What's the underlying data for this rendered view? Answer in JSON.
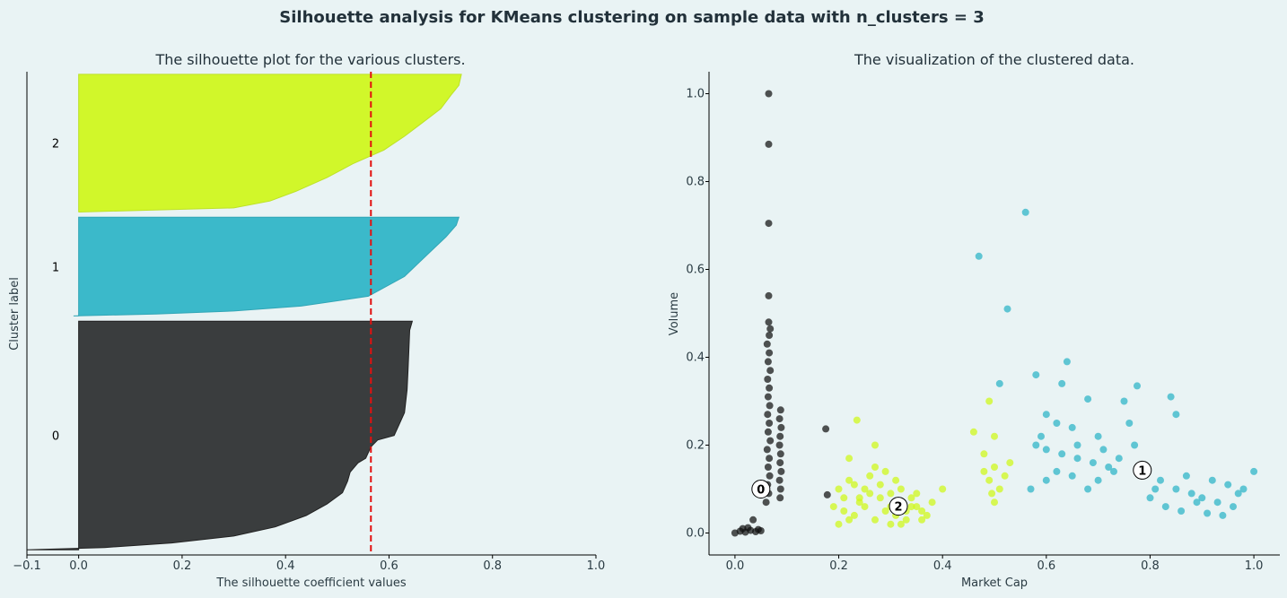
{
  "suptitle": "Silhouette analysis for KMeans clustering on sample data with n_clusters = 3",
  "colors": {
    "background": "#e9f3f4",
    "cluster_0": "#3a3d3e",
    "cluster_1": "#29b3c6",
    "cluster_2": "#cff815",
    "average_line": "#e3100f"
  },
  "chart_data": [
    {
      "type": "area",
      "title": "The silhouette plot for the various clusters.",
      "xlabel": "The silhouette coefficient values",
      "ylabel": "Cluster label",
      "xlim": [
        -0.1,
        1.0
      ],
      "xticks": [
        "−0.1",
        "0.0",
        "0.2",
        "0.4",
        "0.6",
        "0.8",
        "1.0"
      ],
      "xtick_values": [
        -0.1,
        0.0,
        0.2,
        0.4,
        0.6,
        0.8,
        1.0
      ],
      "ylim": [
        0,
        930
      ],
      "average_silhouette": 0.565,
      "grid": false,
      "clusters": [
        {
          "label": "0",
          "range": [
            10,
            450
          ],
          "profile": [
            [
              0.0,
              0.645
            ],
            [
              0.04,
              0.64
            ],
            [
              0.2,
              0.637
            ],
            [
              0.3,
              0.635
            ],
            [
              0.4,
              0.63
            ],
            [
              0.45,
              0.62
            ],
            [
              0.5,
              0.61
            ],
            [
              0.52,
              0.578
            ],
            [
              0.55,
              0.565
            ],
            [
              0.6,
              0.555
            ],
            [
              0.62,
              0.54
            ],
            [
              0.66,
              0.525
            ],
            [
              0.7,
              0.52
            ],
            [
              0.75,
              0.51
            ],
            [
              0.8,
              0.48
            ],
            [
              0.85,
              0.44
            ],
            [
              0.9,
              0.38
            ],
            [
              0.94,
              0.3
            ],
            [
              0.97,
              0.18
            ],
            [
              0.99,
              0.05
            ],
            [
              1.0,
              -0.1
            ]
          ]
        },
        {
          "label": "1",
          "range": [
            460,
            650
          ],
          "profile": [
            [
              0.0,
              0.735
            ],
            [
              0.08,
              0.73
            ],
            [
              0.2,
              0.71
            ],
            [
              0.3,
              0.69
            ],
            [
              0.45,
              0.66
            ],
            [
              0.6,
              0.63
            ],
            [
              0.8,
              0.56
            ],
            [
              0.9,
              0.43
            ],
            [
              0.95,
              0.3
            ],
            [
              0.98,
              0.15
            ],
            [
              1.0,
              -0.01
            ]
          ]
        },
        {
          "label": "2",
          "range": [
            660,
            925
          ],
          "profile": [
            [
              0.0,
              0.74
            ],
            [
              0.08,
              0.735
            ],
            [
              0.15,
              0.72
            ],
            [
              0.25,
              0.7
            ],
            [
              0.35,
              0.665
            ],
            [
              0.45,
              0.63
            ],
            [
              0.55,
              0.59
            ],
            [
              0.65,
              0.53
            ],
            [
              0.75,
              0.48
            ],
            [
              0.85,
              0.42
            ],
            [
              0.92,
              0.37
            ],
            [
              0.97,
              0.3
            ],
            [
              1.0,
              0.0
            ]
          ]
        }
      ]
    },
    {
      "type": "scatter",
      "title": "The visualization of the clustered data.",
      "xlabel": "Market Cap",
      "ylabel": "Volume",
      "xlim": [
        -0.05,
        1.05
      ],
      "ylim": [
        -0.05,
        1.05
      ],
      "xticks": [
        "0.0",
        "0.2",
        "0.4",
        "0.6",
        "0.8",
        "1.0"
      ],
      "yticks": [
        "0.0",
        "0.2",
        "0.4",
        "0.6",
        "0.8",
        "1.0"
      ],
      "tick_values": [
        0.0,
        0.2,
        0.4,
        0.6,
        0.8,
        1.0
      ],
      "grid": false,
      "series": [
        {
          "cluster": "0",
          "points": [
            [
              0.065,
              1.0
            ],
            [
              0.065,
              0.885
            ],
            [
              0.065,
              0.705
            ],
            [
              0.065,
              0.54
            ],
            [
              0.065,
              0.48
            ],
            [
              0.068,
              0.465
            ],
            [
              0.066,
              0.45
            ],
            [
              0.062,
              0.43
            ],
            [
              0.066,
              0.41
            ],
            [
              0.064,
              0.39
            ],
            [
              0.068,
              0.37
            ],
            [
              0.063,
              0.35
            ],
            [
              0.066,
              0.33
            ],
            [
              0.064,
              0.31
            ],
            [
              0.067,
              0.29
            ],
            [
              0.063,
              0.27
            ],
            [
              0.066,
              0.25
            ],
            [
              0.064,
              0.23
            ],
            [
              0.068,
              0.21
            ],
            [
              0.062,
              0.19
            ],
            [
              0.066,
              0.17
            ],
            [
              0.064,
              0.15
            ],
            [
              0.067,
              0.13
            ],
            [
              0.063,
              0.11
            ],
            [
              0.065,
              0.09
            ],
            [
              0.06,
              0.07
            ],
            [
              0.088,
              0.28
            ],
            [
              0.086,
              0.26
            ],
            [
              0.089,
              0.24
            ],
            [
              0.087,
              0.22
            ],
            [
              0.086,
              0.2
            ],
            [
              0.088,
              0.18
            ],
            [
              0.087,
              0.16
            ],
            [
              0.089,
              0.14
            ],
            [
              0.086,
              0.12
            ],
            [
              0.088,
              0.1
            ],
            [
              0.087,
              0.08
            ],
            [
              0.175,
              0.237
            ],
            [
              0.178,
              0.087
            ],
            [
              0.0,
              0.0
            ],
            [
              0.01,
              0.004
            ],
            [
              0.02,
              0.002
            ],
            [
              0.03,
              0.006
            ],
            [
              0.04,
              0.003
            ],
            [
              0.05,
              0.005
            ],
            [
              0.035,
              0.03
            ],
            [
              0.015,
              0.01
            ],
            [
              0.025,
              0.012
            ],
            [
              0.045,
              0.008
            ]
          ]
        },
        {
          "cluster": "1",
          "points": [
            [
              0.56,
              0.73
            ],
            [
              0.47,
              0.63
            ],
            [
              0.525,
              0.51
            ],
            [
              0.64,
              0.39
            ],
            [
              0.58,
              0.36
            ],
            [
              0.63,
              0.34
            ],
            [
              0.775,
              0.335
            ],
            [
              0.51,
              0.34
            ],
            [
              0.68,
              0.305
            ],
            [
              0.75,
              0.3
            ],
            [
              0.84,
              0.31
            ],
            [
              0.6,
              0.27
            ],
            [
              0.62,
              0.25
            ],
            [
              0.65,
              0.24
            ],
            [
              0.7,
              0.22
            ],
            [
              0.76,
              0.25
            ],
            [
              0.85,
              0.27
            ],
            [
              0.58,
              0.2
            ],
            [
              0.6,
              0.19
            ],
            [
              0.63,
              0.18
            ],
            [
              0.66,
              0.17
            ],
            [
              0.69,
              0.16
            ],
            [
              0.72,
              0.15
            ],
            [
              0.74,
              0.17
            ],
            [
              0.77,
              0.2
            ],
            [
              0.79,
              0.14
            ],
            [
              0.82,
              0.12
            ],
            [
              0.85,
              0.1
            ],
            [
              0.88,
              0.09
            ],
            [
              0.9,
              0.08
            ],
            [
              0.93,
              0.07
            ],
            [
              0.96,
              0.06
            ],
            [
              0.98,
              0.1
            ],
            [
              1.0,
              0.14
            ],
            [
              0.83,
              0.06
            ],
            [
              0.86,
              0.05
            ],
            [
              0.91,
              0.045
            ],
            [
              0.94,
              0.04
            ],
            [
              0.97,
              0.09
            ],
            [
              0.8,
              0.08
            ],
            [
              0.87,
              0.13
            ],
            [
              0.92,
              0.12
            ],
            [
              0.95,
              0.11
            ],
            [
              0.89,
              0.07
            ],
            [
              0.81,
              0.1
            ],
            [
              0.6,
              0.12
            ],
            [
              0.62,
              0.14
            ],
            [
              0.65,
              0.13
            ],
            [
              0.68,
              0.1
            ],
            [
              0.7,
              0.12
            ],
            [
              0.73,
              0.14
            ],
            [
              0.57,
              0.1
            ],
            [
              0.59,
              0.22
            ],
            [
              0.66,
              0.2
            ],
            [
              0.71,
              0.19
            ]
          ]
        },
        {
          "cluster": "2",
          "points": [
            [
              0.235,
              0.257
            ],
            [
              0.49,
              0.3
            ],
            [
              0.27,
              0.2
            ],
            [
              0.22,
              0.17
            ],
            [
              0.46,
              0.23
            ],
            [
              0.5,
              0.22
            ],
            [
              0.48,
              0.18
            ],
            [
              0.5,
              0.15
            ],
            [
              0.49,
              0.12
            ],
            [
              0.51,
              0.1
            ],
            [
              0.5,
              0.07
            ],
            [
              0.53,
              0.16
            ],
            [
              0.48,
              0.14
            ],
            [
              0.52,
              0.13
            ],
            [
              0.495,
              0.09
            ],
            [
              0.2,
              0.1
            ],
            [
              0.22,
              0.12
            ],
            [
              0.24,
              0.08
            ],
            [
              0.26,
              0.13
            ],
            [
              0.28,
              0.11
            ],
            [
              0.3,
              0.09
            ],
            [
              0.32,
              0.07
            ],
            [
              0.34,
              0.06
            ],
            [
              0.36,
              0.05
            ],
            [
              0.38,
              0.07
            ],
            [
              0.4,
              0.1
            ],
            [
              0.21,
              0.05
            ],
            [
              0.23,
              0.04
            ],
            [
              0.25,
              0.06
            ],
            [
              0.27,
              0.03
            ],
            [
              0.29,
              0.05
            ],
            [
              0.31,
              0.04
            ],
            [
              0.33,
              0.03
            ],
            [
              0.35,
              0.06
            ],
            [
              0.37,
              0.04
            ],
            [
              0.2,
              0.02
            ],
            [
              0.22,
              0.03
            ],
            [
              0.24,
              0.07
            ],
            [
              0.26,
              0.09
            ],
            [
              0.28,
              0.08
            ],
            [
              0.3,
              0.06
            ],
            [
              0.32,
              0.1
            ],
            [
              0.34,
              0.08
            ],
            [
              0.36,
              0.03
            ],
            [
              0.31,
              0.12
            ],
            [
              0.29,
              0.14
            ],
            [
              0.27,
              0.15
            ],
            [
              0.25,
              0.1
            ],
            [
              0.33,
              0.05
            ],
            [
              0.35,
              0.09
            ],
            [
              0.19,
              0.06
            ],
            [
              0.21,
              0.08
            ],
            [
              0.23,
              0.11
            ],
            [
              0.3,
              0.02
            ],
            [
              0.32,
              0.02
            ]
          ]
        }
      ],
      "centers": [
        {
          "label": "0",
          "x": 0.05,
          "y": 0.1
        },
        {
          "label": "1",
          "x": 0.785,
          "y": 0.143
        },
        {
          "label": "2",
          "x": 0.315,
          "y": 0.061
        }
      ]
    }
  ]
}
